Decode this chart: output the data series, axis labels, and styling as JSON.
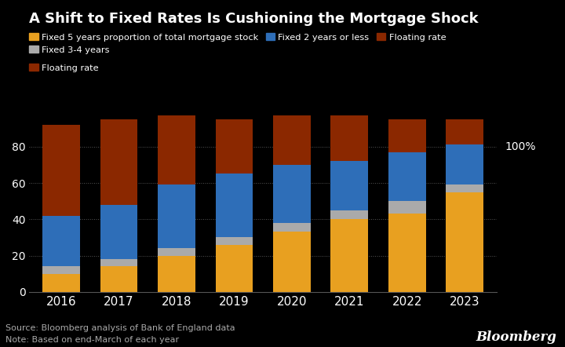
{
  "title": "A Shift to Fixed Rates Is Cushioning the Mortgage Shock",
  "years": [
    "2016",
    "2017",
    "2018",
    "2019",
    "2020",
    "2021",
    "2022",
    "2023"
  ],
  "fixed5": [
    10,
    14,
    20,
    26,
    33,
    40,
    43,
    55
  ],
  "fixed34": [
    4,
    4,
    4,
    4,
    5,
    5,
    7,
    4
  ],
  "fixed2": [
    28,
    30,
    35,
    35,
    32,
    27,
    27,
    22
  ],
  "floating": [
    50,
    47,
    38,
    30,
    27,
    25,
    18,
    14
  ],
  "colors": {
    "fixed5": "#E8A020",
    "fixed34": "#AAAAAA",
    "fixed2": "#2E6EB8",
    "floating": "#8B2800"
  },
  "legend_labels": [
    "Fixed 5 years proportion of total mortgage stock",
    "Fixed 3-4 years",
    "Fixed 2 years or less",
    "Floating rate"
  ],
  "ylim": [
    0,
    105
  ],
  "yticks": [
    0,
    20,
    40,
    60,
    80
  ],
  "ytick_top_label": "100%",
  "source_text": "Source: Bloomberg analysis of Bank of England data",
  "note_text": "Note: Based on end-March of each year",
  "bloomberg_label": "Bloomberg",
  "background_color": "#000000",
  "text_color": "#FFFFFF",
  "bar_width": 0.65
}
